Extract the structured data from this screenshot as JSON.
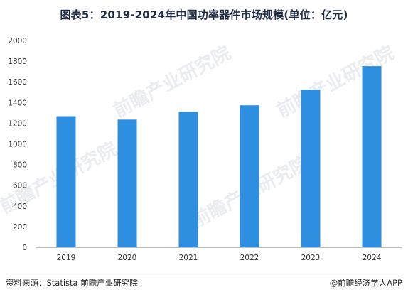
{
  "title": "图表5：2019-2024年中国功率器件市场规模(单位：亿元)",
  "footer": {
    "source": "资料来源：Statista 前瞻产业研究院",
    "brand": "@前瞻经济学人APP"
  },
  "watermark": "前瞻产业研究院",
  "chart_data": {
    "type": "bar",
    "categories": [
      "2019",
      "2020",
      "2021",
      "2022",
      "2023",
      "2024"
    ],
    "values": [
      1268,
      1235,
      1310,
      1373,
      1525,
      1752
    ],
    "ylim": [
      0,
      2000
    ],
    "yticks": [
      0,
      200,
      400,
      600,
      800,
      1000,
      1200,
      1400,
      1600,
      1800,
      2000
    ],
    "grid": false,
    "bar_color": "#2e8ee0"
  }
}
